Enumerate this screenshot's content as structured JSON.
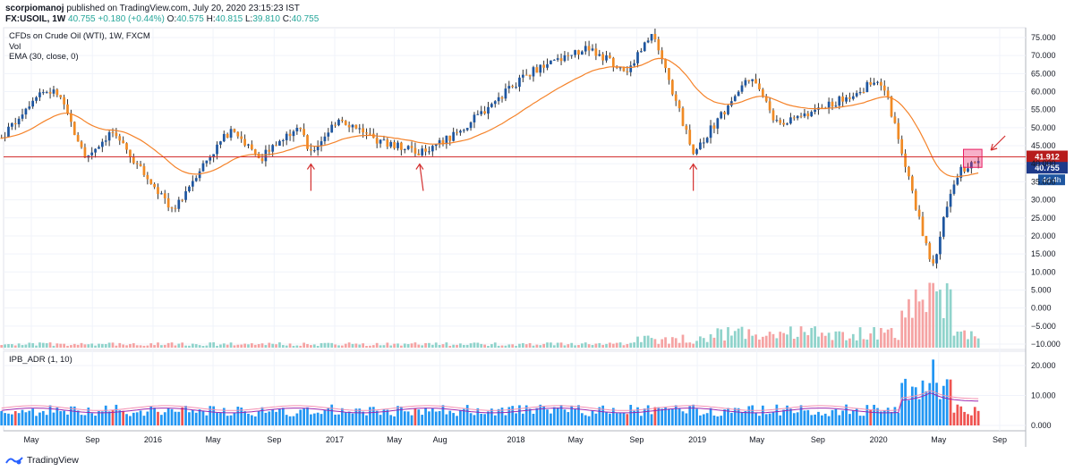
{
  "header": {
    "author": "scorpiomanoj",
    "published": "published on TradingView.com, July 20, 2020 23:15:23 IST",
    "symbol": "FX:USOIL, 1W",
    "last": "40.755",
    "change": "+0.180 (+0.44%)",
    "o_label": "O:",
    "o_value": "40.575",
    "h_label": "H:",
    "h_value": "40.815",
    "l_label": "L:",
    "l_value": "39.810",
    "c_label": "C:",
    "c_value": "40.755"
  },
  "legend": {
    "title": "CFDs on Crude Oil (WTI), 1W, FXCM",
    "vol": "Vol",
    "ema": "EMA (30, close, 0)",
    "indicator": "IPB_ADR (1, 10)"
  },
  "footer": {
    "brand": "TradingView"
  },
  "colors": {
    "up": "#26a69a",
    "down": "#ef5350",
    "bull_body": "#1e56a0",
    "bear_body": "#f08a24",
    "ema": "#f5832a",
    "hline": "#d32f2f",
    "ipb_up": "#2196f3",
    "ipb_down": "#ef5350"
  },
  "chart_data": [
    {
      "type": "candlestick",
      "ylim": [
        -10,
        77
      ],
      "yticks": [
        -10,
        -5,
        0,
        5,
        10,
        15,
        20,
        25,
        30,
        35,
        40,
        45,
        50,
        55,
        60,
        65,
        70,
        75
      ],
      "ytick_labels": [
        "−10.000",
        "−5.000",
        "0.000",
        "5.000",
        "10.000",
        "15.000",
        "20.000",
        "25.000",
        "30.000",
        "35.000",
        "40.000",
        "45.000",
        "50.000",
        "55.000",
        "60.000",
        "65.000",
        "70.000",
        "75.000"
      ],
      "xtick_labels": [
        "May",
        "Sep",
        "2016",
        "May",
        "Sep",
        "2017",
        "May",
        "Aug",
        "2018",
        "May",
        "Sep",
        "2019",
        "May",
        "Sep",
        "2020",
        "May",
        "Sep"
      ],
      "xtick_dates": [
        "2015-05-01",
        "2015-09-01",
        "2016-01-01",
        "2016-05-01",
        "2016-09-01",
        "2017-01-01",
        "2017-05-01",
        "2017-08-01",
        "2018-01-01",
        "2018-05-01",
        "2018-09-01",
        "2019-01-01",
        "2019-05-01",
        "2019-09-01",
        "2020-01-01",
        "2020-05-01",
        "2020-09-01"
      ],
      "price_path": [
        [
          "2015-03-01",
          47
        ],
        [
          "2015-05-15",
          60
        ],
        [
          "2015-06-20",
          60
        ],
        [
          "2015-08-20",
          42
        ],
        [
          "2015-10-10",
          49
        ],
        [
          "2015-12-20",
          36
        ],
        [
          "2016-02-11",
          27
        ],
        [
          "2016-04-01",
          38
        ],
        [
          "2016-06-08",
          50
        ],
        [
          "2016-08-01",
          41
        ],
        [
          "2016-10-20",
          51
        ],
        [
          "2016-11-14",
          43
        ],
        [
          "2017-01-10",
          53
        ],
        [
          "2017-03-15",
          47
        ],
        [
          "2017-06-21",
          43
        ],
        [
          "2017-09-01",
          48
        ],
        [
          "2018-01-25",
          65
        ],
        [
          "2018-05-20",
          72
        ],
        [
          "2018-08-15",
          66
        ],
        [
          "2018-10-03",
          76
        ],
        [
          "2018-12-24",
          43
        ],
        [
          "2019-04-20",
          65
        ],
        [
          "2019-06-10",
          51
        ],
        [
          "2019-09-20",
          56
        ],
        [
          "2019-12-31",
          63
        ],
        [
          "2020-01-20",
          58
        ],
        [
          "2020-03-30",
          21
        ],
        [
          "2020-04-21",
          11
        ],
        [
          "2020-05-10",
          25
        ],
        [
          "2020-06-10",
          38
        ],
        [
          "2020-07-20",
          40.755
        ]
      ],
      "ema_label": "EMA (30, close, 0)",
      "horizontal_line": {
        "value": 41.912,
        "label": "41.912"
      },
      "last_price": {
        "value": 40.755,
        "label": "40.755"
      },
      "countdown": "4d 4h",
      "arrows_at": [
        "2016-11-14",
        "2017-06-21",
        "2018-12-24",
        "2020-07-20"
      ],
      "highlight_box": {
        "start": "2020-06-20",
        "end": "2020-07-20",
        "low": 39,
        "high": 44
      }
    },
    {
      "type": "bar",
      "name": "Vol",
      "description_peaks": [
        [
          "2020-03-20",
          26
        ],
        [
          "2020-04-20",
          22
        ]
      ]
    },
    {
      "type": "bar",
      "name": "IPB_ADR (1, 10)",
      "ylim": [
        -2,
        24
      ],
      "yticks": [
        0,
        10,
        20
      ],
      "ytick_labels": [
        "0.000",
        "10.000",
        "20.000"
      ],
      "peak": [
        "2020-04-20",
        22
      ]
    }
  ]
}
